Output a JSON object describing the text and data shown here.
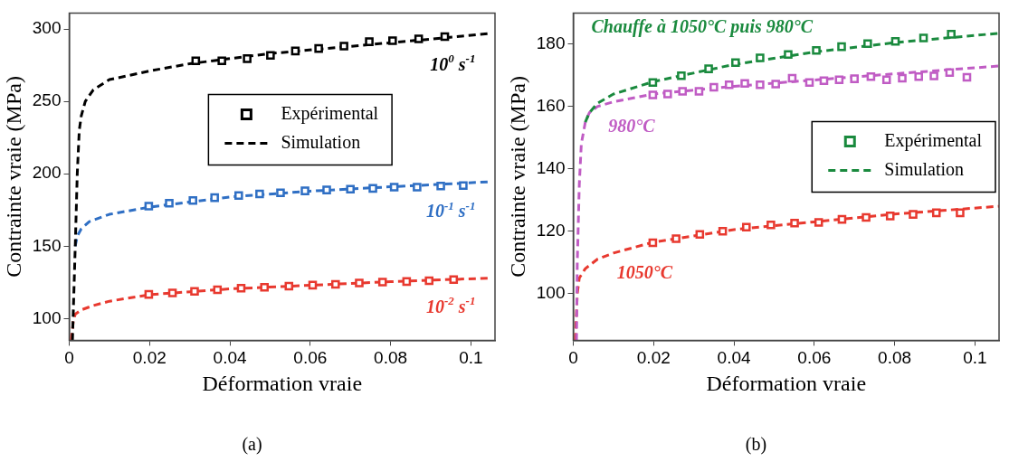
{
  "chart_data": [
    {
      "type": "line",
      "xlabel": "Déformation vraie",
      "ylabel": "Contrainte vraie (MPa)",
      "xlim": [
        0,
        0.106
      ],
      "ylim": [
        85,
        311
      ],
      "xticks": [
        0,
        0.02,
        0.04,
        0.06,
        0.08,
        0.1
      ],
      "yticks": [
        100,
        150,
        200,
        250,
        300
      ],
      "grid": false,
      "legend": "top",
      "title": "(a)",
      "annotations": [
        {
          "text": "10$^{0}$ s$^{-1}$",
          "x": 0.0955,
          "y": 294.5
        },
        {
          "text": "10$^{-1}$ s$^{-1}$",
          "x": 0.095,
          "y": 193.1
        },
        {
          "text": "10$^{-2}$ s$^{-1}$",
          "x": 0.095,
          "y": 127
        }
      ],
      "series": [
        {
          "name": "Expérimental",
          "type": "scatter",
          "marker": "square",
          "color": "#000000",
          "x": [
            0.0315,
            0.038,
            0.0443,
            0.0501,
            0.0563,
            0.0621,
            0.0684,
            0.0747,
            0.0805,
            0.087,
            0.0935
          ],
          "values": [
            278,
            278,
            279.5,
            281.8,
            284.8,
            286.5,
            288.2,
            291.2,
            291.9,
            293.2,
            294.7
          ]
        },
        {
          "name": "Simulation",
          "line_style": "dashed",
          "color": "#000000",
          "x": [
            0.0008,
            0.0015,
            0.002,
            0.0025,
            0.003,
            0.004,
            0.006,
            0.01,
            0.02,
            0.03,
            0.05,
            0.07,
            0.09,
            0.105
          ],
          "values": [
            85,
            150,
            200,
            230,
            240,
            250,
            258,
            265,
            271,
            276,
            283,
            288,
            293,
            297
          ]
        },
        {
          "type": "scatter",
          "marker": "square",
          "color": "#2f6fc4",
          "x": [
            0.0198,
            0.0249,
            0.0308,
            0.0362,
            0.0422,
            0.0474,
            0.0526,
            0.0587,
            0.0641,
            0.07,
            0.0756,
            0.0809,
            0.0866,
            0.0925,
            0.0981
          ],
          "values": [
            177.6,
            179.7,
            181.6,
            183.5,
            185.0,
            186.1,
            186.9,
            188.2,
            188.8,
            189.3,
            189.9,
            190.8,
            190.8,
            191.5,
            191.9
          ]
        },
        {
          "line_style": "dashed",
          "color": "#2f6fc4",
          "x": [
            0.0015,
            0.002,
            0.003,
            0.005,
            0.01,
            0.02,
            0.04,
            0.06,
            0.08,
            0.105
          ],
          "values": [
            150,
            157,
            162,
            167,
            172,
            177,
            184,
            188,
            191,
            194.5
          ]
        },
        {
          "type": "scatter",
          "marker": "square",
          "color": "#e8392f",
          "x": [
            0.0198,
            0.0257,
            0.0312,
            0.0369,
            0.0428,
            0.0486,
            0.0547,
            0.0606,
            0.0663,
            0.0722,
            0.078,
            0.084,
            0.0896,
            0.0957
          ],
          "values": [
            116.7,
            117.7,
            118.8,
            119.9,
            121.0,
            121.6,
            122.4,
            123.1,
            123.7,
            124.6,
            125.2,
            125.6,
            126.1,
            126.9
          ]
        },
        {
          "line_style": "dashed",
          "color": "#e8392f",
          "x": [
            0.0005,
            0.001,
            0.0015,
            0.003,
            0.006,
            0.01,
            0.02,
            0.04,
            0.06,
            0.08,
            0.105
          ],
          "values": [
            85,
            98,
            103,
            106,
            109,
            112,
            116.5,
            120.5,
            123,
            125.5,
            128
          ]
        }
      ]
    },
    {
      "type": "line",
      "xlabel": "Déformation vraie",
      "ylabel": "Contrainte vraie (MPa)",
      "xlim": [
        0,
        0.106
      ],
      "ylim": [
        85,
        190
      ],
      "xticks": [
        0,
        0.02,
        0.04,
        0.06,
        0.08,
        0.1
      ],
      "yticks": [
        100,
        120,
        140,
        160,
        180
      ],
      "grid": false,
      "legend": "right",
      "title": "(b)",
      "annotations": [
        "Chauffe à 1050°C puis 980°C",
        {
          "text": "980°C",
          "x": 0.0145,
          "y": 162.6
        },
        {
          "text": "1050°C",
          "x": 0.0178,
          "y": 115.7
        }
      ],
      "series": [
        {
          "name": "Expérimental",
          "type": "scatter",
          "marker": "square",
          "color": "#1a8a3e",
          "x": [
            0.0198,
            0.0269,
            0.0337,
            0.0404,
            0.0465,
            0.0535,
            0.0605,
            0.0668,
            0.0733,
            0.0802,
            0.0872,
            0.0941
          ],
          "values": [
            167.7,
            169.9,
            172.1,
            174.1,
            175.6,
            176.7,
            178.0,
            179.2,
            180.2,
            180.9,
            182.0,
            183.2
          ]
        },
        {
          "name": "Simulation",
          "line_style": "dashed",
          "color": "#1a8a3e",
          "x": [
            0.003,
            0.004,
            0.006,
            0.01,
            0.02,
            0.04,
            0.06,
            0.08,
            0.106
          ],
          "values": [
            155,
            158,
            161,
            164,
            168,
            173.5,
            177.5,
            180.5,
            183.5
          ]
        },
        {
          "type": "scatter",
          "marker": "square",
          "color": "#c05cc4",
          "x": [
            0.0198,
            0.0235,
            0.0272,
            0.0313,
            0.035,
            0.0388,
            0.0427,
            0.0465,
            0.0504,
            0.0545,
            0.0588,
            0.0624,
            0.0662,
            0.07,
            0.0741,
            0.078,
            0.0819,
            0.086,
            0.0898,
            0.0937,
            0.098
          ],
          "values": [
            163.7,
            164.0,
            164.9,
            164.9,
            166.2,
            167.0,
            167.4,
            167.0,
            167.2,
            169.1,
            167.7,
            168.3,
            168.6,
            168.9,
            169.6,
            168.6,
            169.1,
            169.6,
            169.8,
            170.9,
            169.4
          ]
        },
        {
          "line_style": "dashed",
          "color": "#c05cc4",
          "x": [
            0.0008,
            0.001,
            0.0015,
            0.002,
            0.003,
            0.004,
            0.006,
            0.01,
            0.02,
            0.04,
            0.06,
            0.08,
            0.106
          ],
          "values": [
            85,
            110,
            135,
            148,
            155,
            158,
            160,
            161.5,
            164,
            166.5,
            168.5,
            170.5,
            173
          ]
        },
        {
          "type": "scatter",
          "marker": "square",
          "color": "#e8392f",
          "x": [
            0.0198,
            0.0256,
            0.0315,
            0.0372,
            0.0431,
            0.0492,
            0.0551,
            0.0611,
            0.0669,
            0.0729,
            0.0789,
            0.0846,
            0.0904,
            0.0963
          ],
          "values": [
            116.3,
            117.6,
            119.0,
            120.0,
            121.3,
            122.0,
            122.6,
            122.8,
            123.8,
            124.4,
            124.9,
            125.4,
            125.9,
            125.9
          ]
        },
        {
          "line_style": "dashed",
          "color": "#e8392f",
          "x": [
            0.0005,
            0.001,
            0.0015,
            0.003,
            0.006,
            0.01,
            0.02,
            0.04,
            0.06,
            0.08,
            0.106
          ],
          "values": [
            85,
            100,
            105,
            108,
            111,
            113,
            116.5,
            120.5,
            123,
            125.5,
            128
          ]
        }
      ]
    }
  ]
}
